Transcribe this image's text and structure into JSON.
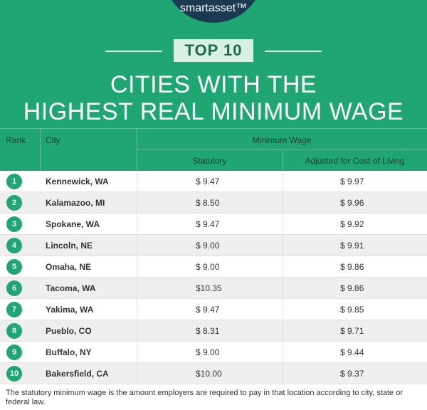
{
  "header": {
    "logo": "smartasset™",
    "badge": "TOP 10",
    "title_lines": [
      "CITIES WITH THE",
      "HIGHEST REAL MINIMUM WAGE"
    ]
  },
  "table": {
    "columns": {
      "rank": "Rank",
      "city": "City",
      "group": "Minimum Wage",
      "statutory": "Statutory",
      "adjusted": "Adjusted for Cost of Living"
    },
    "rows": [
      {
        "rank": 1,
        "city": "Kennewick, WA",
        "statutory": "$ 9.47",
        "adjusted": "$ 9.97"
      },
      {
        "rank": 2,
        "city": "Kalamazoo, MI",
        "statutory": "$ 8.50",
        "adjusted": "$ 9.96"
      },
      {
        "rank": 3,
        "city": "Spokane, WA",
        "statutory": "$ 9.47",
        "adjusted": "$ 9.92"
      },
      {
        "rank": 4,
        "city": "Lincoln, NE",
        "statutory": "$ 9.00",
        "adjusted": "$ 9.91"
      },
      {
        "rank": 5,
        "city": "Omaha, NE",
        "statutory": "$ 9.00",
        "adjusted": "$ 9.86"
      },
      {
        "rank": 6,
        "city": "Tacoma, WA",
        "statutory": "$10.35",
        "adjusted": "$ 9.86"
      },
      {
        "rank": 7,
        "city": "Yakima, WA",
        "statutory": "$ 9.47",
        "adjusted": "$ 9.85"
      },
      {
        "rank": 8,
        "city": "Pueblo, CO",
        "statutory": "$ 8.31",
        "adjusted": "$ 9.71"
      },
      {
        "rank": 9,
        "city": "Buffalo, NY",
        "statutory": "$ 9.00",
        "adjusted": "$ 9.44"
      },
      {
        "rank": 10,
        "city": "Bakersfield, CA",
        "statutory": "$10.00",
        "adjusted": "$ 9.37"
      }
    ]
  },
  "footnote": "The statutory minimum wage is the amount employers are required to pay in that location according to city, state or federal law."
}
